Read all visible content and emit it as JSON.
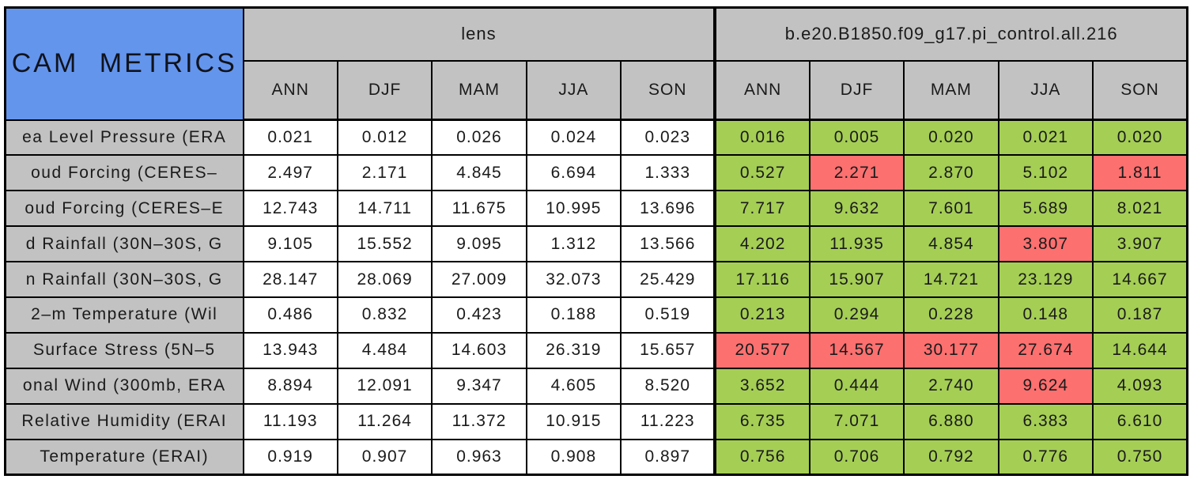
{
  "colors": {
    "title_bg": "#6495ED",
    "header_bg": "#C2C2C2",
    "good": "#A5CE55",
    "bad": "#FC7070",
    "neutral": "#FFFFFF",
    "border": "#000000"
  },
  "chart_data": {
    "type": "table",
    "title": "CAM METRICS",
    "column_groups": [
      "lens",
      "b.e20.B1850.f09_g17.pi_control.all.216"
    ],
    "seasons": [
      "ANN",
      "DJF",
      "MAM",
      "JJA",
      "SON"
    ],
    "cell_color_legend": {
      "good": "#A5CE55",
      "bad": "#FC7070",
      "plain": "#FFFFFF"
    },
    "rows": [
      {
        "label": "ea Level Pressure (ERA",
        "lens": [
          "0.021",
          "0.012",
          "0.026",
          "0.024",
          "0.023"
        ],
        "control": [
          "0.016",
          "0.005",
          "0.020",
          "0.021",
          "0.020"
        ],
        "control_status": [
          "good",
          "good",
          "good",
          "good",
          "good"
        ]
      },
      {
        "label": "oud Forcing (CERES–",
        "lens": [
          "2.497",
          "2.171",
          "4.845",
          "6.694",
          "1.333"
        ],
        "control": [
          "0.527",
          "2.271",
          "2.870",
          "5.102",
          "1.811"
        ],
        "control_status": [
          "good",
          "bad",
          "good",
          "good",
          "bad"
        ]
      },
      {
        "label": "oud Forcing (CERES–E",
        "lens": [
          "12.743",
          "14.711",
          "11.675",
          "10.995",
          "13.696"
        ],
        "control": [
          "7.717",
          "9.632",
          "7.601",
          "5.689",
          "8.021"
        ],
        "control_status": [
          "good",
          "good",
          "good",
          "good",
          "good"
        ]
      },
      {
        "label": "d Rainfall (30N–30S, G",
        "lens": [
          "9.105",
          "15.552",
          "9.095",
          "1.312",
          "13.566"
        ],
        "control": [
          "4.202",
          "11.935",
          "4.854",
          "3.807",
          "3.907"
        ],
        "control_status": [
          "good",
          "good",
          "good",
          "bad",
          "good"
        ]
      },
      {
        "label": "n Rainfall (30N–30S, G",
        "lens": [
          "28.147",
          "28.069",
          "27.009",
          "32.073",
          "25.429"
        ],
        "control": [
          "17.116",
          "15.907",
          "14.721",
          "23.129",
          "14.667"
        ],
        "control_status": [
          "good",
          "good",
          "good",
          "good",
          "good"
        ]
      },
      {
        "label": "2–m Temperature (Wil",
        "lens": [
          "0.486",
          "0.832",
          "0.423",
          "0.188",
          "0.519"
        ],
        "control": [
          "0.213",
          "0.294",
          "0.228",
          "0.148",
          "0.187"
        ],
        "control_status": [
          "good",
          "good",
          "good",
          "good",
          "good"
        ]
      },
      {
        "label": "Surface Stress (5N–5",
        "lens": [
          "13.943",
          "4.484",
          "14.603",
          "26.319",
          "15.657"
        ],
        "control": [
          "20.577",
          "14.567",
          "30.177",
          "27.674",
          "14.644"
        ],
        "control_status": [
          "bad",
          "bad",
          "bad",
          "bad",
          "good"
        ]
      },
      {
        "label": "onal Wind (300mb, ERA",
        "lens": [
          "8.894",
          "12.091",
          "9.347",
          "4.605",
          "8.520"
        ],
        "control": [
          "3.652",
          "0.444",
          "2.740",
          "9.624",
          "4.093"
        ],
        "control_status": [
          "good",
          "good",
          "good",
          "bad",
          "good"
        ]
      },
      {
        "label": "Relative Humidity (ERAI",
        "lens": [
          "11.193",
          "11.264",
          "11.372",
          "10.915",
          "11.223"
        ],
        "control": [
          "6.735",
          "7.071",
          "6.880",
          "6.383",
          "6.610"
        ],
        "control_status": [
          "good",
          "good",
          "good",
          "good",
          "good"
        ]
      },
      {
        "label": "Temperature (ERAI)",
        "lens": [
          "0.919",
          "0.907",
          "0.963",
          "0.908",
          "0.897"
        ],
        "control": [
          "0.756",
          "0.706",
          "0.792",
          "0.776",
          "0.750"
        ],
        "control_status": [
          "good",
          "good",
          "good",
          "good",
          "good"
        ]
      }
    ]
  }
}
